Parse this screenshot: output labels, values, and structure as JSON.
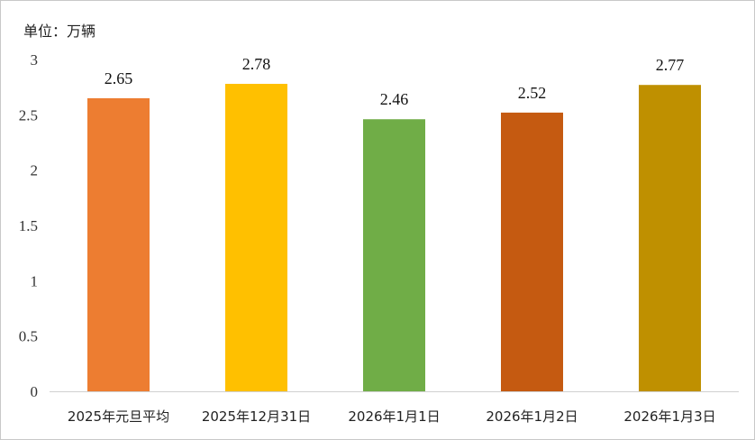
{
  "chart_data": {
    "type": "bar",
    "unit_label": "单位：万辆",
    "categories": [
      "2025年元旦平均",
      "2025年12月31日",
      "2026年1月1日",
      "2026年1月2日",
      "2026年1月3日"
    ],
    "values": [
      2.65,
      2.78,
      2.46,
      2.52,
      2.77
    ],
    "data_labels": [
      "2.65",
      "2.78",
      "2.46",
      "2.52",
      "2.77"
    ],
    "colors": [
      "#ED7D31",
      "#FFC000",
      "#70AD47",
      "#C55A11",
      "#BF9000"
    ],
    "yticks": [
      0,
      0.5,
      1,
      1.5,
      2,
      2.5,
      3
    ],
    "ylim": [
      0,
      3
    ],
    "grid": false,
    "legend": "none"
  }
}
